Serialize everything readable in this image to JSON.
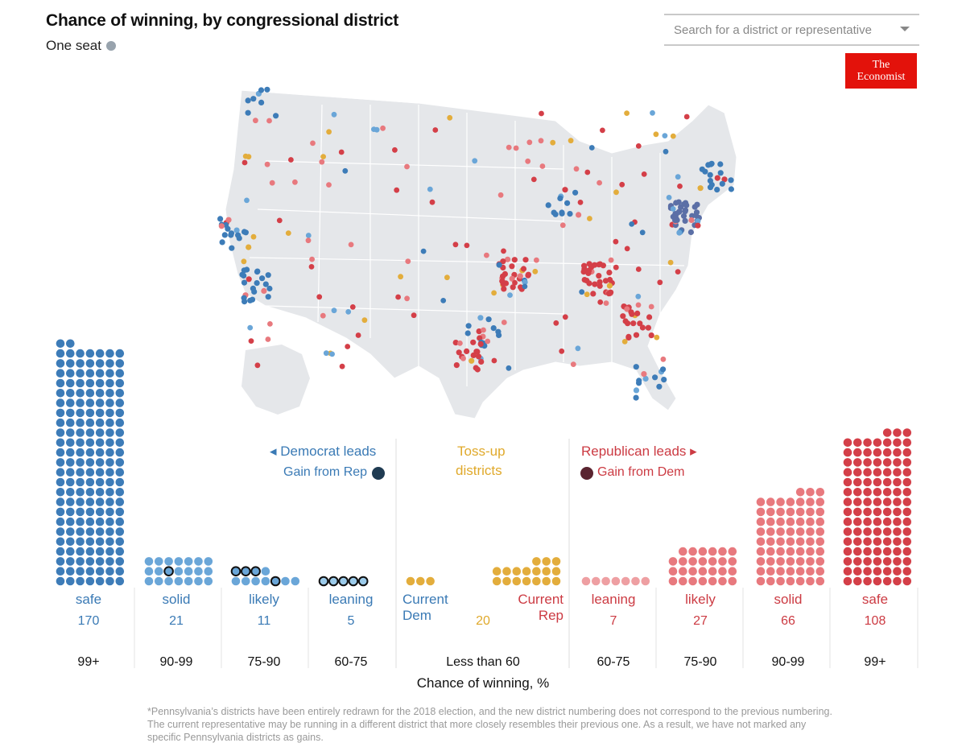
{
  "header": {
    "title": "Chance of winning, by congressional district",
    "legend_label": "One seat"
  },
  "search": {
    "placeholder": "Search for a district or representative"
  },
  "logo": {
    "line1": "The",
    "line2": "Economist"
  },
  "groups": {
    "dem_title": "◂ Democrat leads",
    "dem_gain": "Gain from Rep",
    "tossup_title_1": "Toss-up",
    "tossup_title_2": "districts",
    "rep_title": "Republican leads ▸",
    "rep_gain": "Gain from Dem"
  },
  "colors": {
    "dem_safe": "#3d7cb8",
    "dem_light": "#6aa6d8",
    "dem_lean": "#9ccbea",
    "tossup": "#e3ad3c",
    "rep_light": "#e8797e",
    "rep_lean": "#ee9fa2",
    "rep_safe": "#d43f48",
    "gain_dem": "#1f3b52",
    "gain_rep": "#5a2430"
  },
  "axis_label": "Chance of winning, %",
  "footnote": "*Pennsylvania’s districts have been entirely redrawn for the 2018 election, and the new district numbering does not correspond to the previous numbering. The current representative may be running in a different district that more closely resembles their previous one. As a result, we have not marked any specific Pennsylvania districts as gains.",
  "chart_data": {
    "type": "bar",
    "title": "Chance of winning, by congressional district",
    "xlabel": "Chance of winning, %",
    "categories": [
      {
        "party": "Dem",
        "label": "safe",
        "count": 170,
        "range": "99+",
        "gains": 0
      },
      {
        "party": "Dem",
        "label": "solid",
        "count": 21,
        "range": "90-99",
        "gains": 1
      },
      {
        "party": "Dem",
        "label": "likely",
        "count": 11,
        "range": "75-90",
        "gains": 4
      },
      {
        "party": "Dem",
        "label": "leaning",
        "count": 5,
        "range": "60-75",
        "gains": 5
      },
      {
        "party": "Toss-up",
        "label": "Current Dem",
        "count": 3,
        "range": "Less than 60"
      },
      {
        "party": "Toss-up",
        "label": "Current Rep",
        "count": 17,
        "range": "Less than 60"
      },
      {
        "party": "Toss-up",
        "label": "Toss-up",
        "count": 20,
        "range": "Less than 60"
      },
      {
        "party": "Rep",
        "label": "leaning",
        "count": 7,
        "range": "60-75",
        "gains": 0
      },
      {
        "party": "Rep",
        "label": "likely",
        "count": 27,
        "range": "75-90",
        "gains": 0
      },
      {
        "party": "Rep",
        "label": "solid",
        "count": 66,
        "range": "90-99",
        "gains": 0
      },
      {
        "party": "Rep",
        "label": "safe",
        "count": 108,
        "range": "99+",
        "gains": 0
      }
    ],
    "labels": {
      "safe_dem": "safe",
      "solid_dem": "solid",
      "likely_dem": "likely",
      "leaning_dem": "leaning",
      "current_dem": "Current Dem",
      "current_rep": "Current Rep",
      "leaning_rep": "leaning",
      "likely_rep": "likely",
      "solid_rep": "solid",
      "safe_rep": "safe"
    },
    "counts": {
      "safe_dem": "170",
      "solid_dem": "21",
      "likely_dem": "11",
      "leaning_dem": "5",
      "tossup": "20",
      "leaning_rep": "7",
      "likely_rep": "27",
      "solid_rep": "66",
      "safe_rep": "108"
    },
    "ranges": {
      "dem_safe": "99+",
      "dem_solid": "90-99",
      "dem_likely": "75-90",
      "dem_leaning": "60-75",
      "tossup": "Less than 60",
      "rep_leaning": "60-75",
      "rep_likely": "75-90",
      "rep_solid": "90-99",
      "rep_safe": "99+"
    }
  }
}
